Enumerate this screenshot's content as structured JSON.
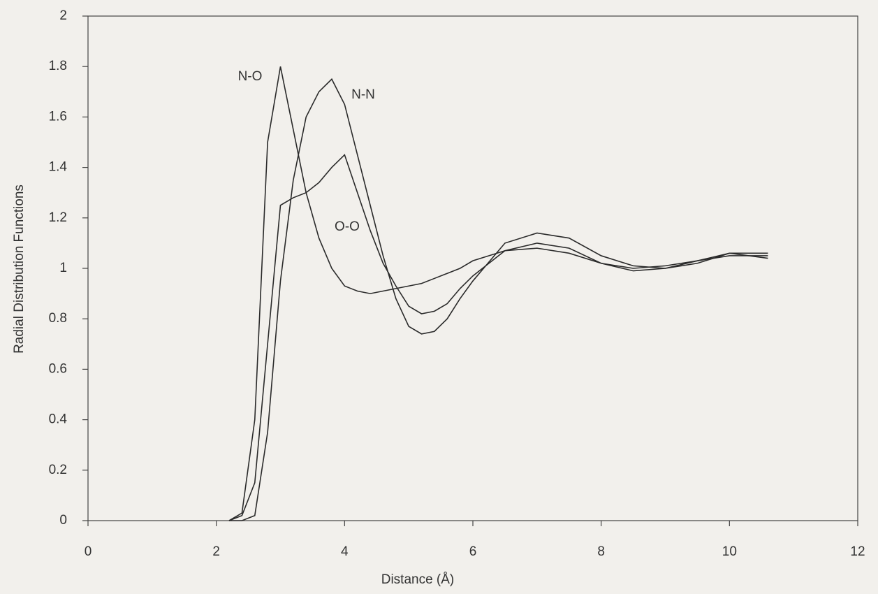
{
  "chart_data": {
    "type": "line",
    "x_label": "Distance (Å)",
    "y_label": "Radial Distribution Functions",
    "x": [
      2.2,
      2.4,
      2.6,
      2.8,
      3.0,
      3.2,
      3.4,
      3.6,
      3.8,
      4.0,
      4.2,
      4.4,
      4.6,
      4.8,
      5.0,
      5.2,
      5.4,
      5.6,
      5.8,
      6.0,
      6.5,
      7.0,
      7.5,
      8.0,
      8.5,
      9.0,
      9.5,
      10.0,
      10.6
    ],
    "series": [
      {
        "name": "N-O",
        "color": "#2a2a2a",
        "values": [
          0,
          0.03,
          0.4,
          1.5,
          1.8,
          1.55,
          1.3,
          1.12,
          1.0,
          0.93,
          0.91,
          0.9,
          0.91,
          0.92,
          0.93,
          0.94,
          0.96,
          0.98,
          1.0,
          1.03,
          1.07,
          1.08,
          1.06,
          1.02,
          1.0,
          1.01,
          1.03,
          1.05,
          1.05
        ]
      },
      {
        "name": "N-N",
        "color": "#2a2a2a",
        "values": [
          0,
          0,
          0.02,
          0.35,
          0.95,
          1.35,
          1.6,
          1.7,
          1.75,
          1.65,
          1.45,
          1.25,
          1.05,
          0.88,
          0.77,
          0.74,
          0.75,
          0.8,
          0.88,
          0.95,
          1.1,
          1.14,
          1.12,
          1.05,
          1.01,
          1.0,
          1.02,
          1.06,
          1.06
        ]
      },
      {
        "name": "O-O",
        "color": "#2a2a2a",
        "values": [
          0,
          0.02,
          0.15,
          0.7,
          1.25,
          1.28,
          1.3,
          1.34,
          1.4,
          1.45,
          1.3,
          1.15,
          1.02,
          0.93,
          0.85,
          0.82,
          0.83,
          0.86,
          0.92,
          0.97,
          1.07,
          1.1,
          1.08,
          1.02,
          0.99,
          1.0,
          1.03,
          1.06,
          1.04
        ]
      }
    ],
    "xlim": [
      0,
      12
    ],
    "xticks": [
      0,
      2,
      4,
      6,
      8,
      10,
      12
    ],
    "ylim": [
      0,
      2
    ],
    "yticks": [
      0,
      0.2,
      0.4,
      0.6,
      0.8,
      1,
      1.2,
      1.4,
      1.6,
      1.8,
      2
    ],
    "grid": false
  }
}
